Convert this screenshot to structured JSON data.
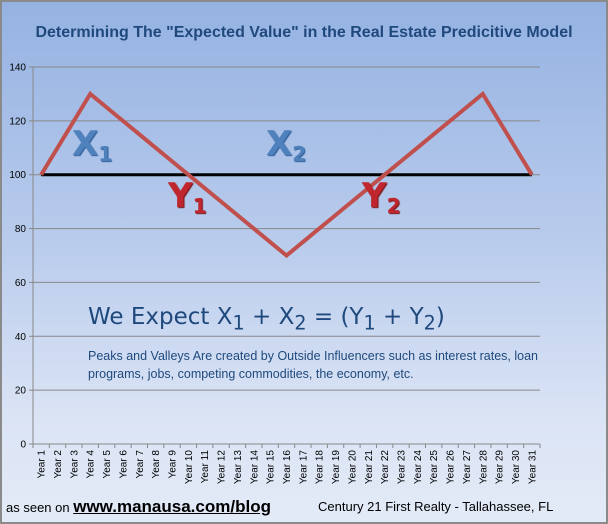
{
  "chart_data": {
    "type": "line",
    "title": "Determining The \"Expected Value\" in the Real Estate Predicitive Model",
    "categories": [
      "Year 1",
      "Year 2",
      "Year 3",
      "Year 4",
      "Year 5",
      "Year 6",
      "Year 7",
      "Year 8",
      "Year 9",
      "Year 10",
      "Year 11",
      "Year 12",
      "Year 13",
      "Year 14",
      "Year 15",
      "Year 16",
      "Year 17",
      "Year 18",
      "Year 19",
      "Year 20",
      "Year 21",
      "Year 22",
      "Year 23",
      "Year 24",
      "Year 25",
      "Year 26",
      "Year 27",
      "Year 28",
      "Year 29",
      "Year 30",
      "Year 31"
    ],
    "series": [
      {
        "values": [
          100,
          110,
          120,
          130,
          125,
          120,
          115,
          110,
          105,
          100,
          95,
          90,
          85,
          80,
          75,
          70,
          75,
          80,
          85,
          90,
          95,
          100,
          105,
          110,
          115,
          120,
          125,
          130,
          120,
          110,
          100
        ],
        "color": "#c0504d"
      },
      {
        "values": [
          100,
          100,
          100,
          100,
          100,
          100,
          100,
          100,
          100,
          100,
          100,
          100,
          100,
          100,
          100,
          100,
          100,
          100,
          100,
          100,
          100,
          100,
          100,
          100,
          100,
          100,
          100,
          100,
          100,
          100,
          100
        ],
        "color": "#000000"
      }
    ],
    "ylim": [
      0,
      140
    ],
    "yticks": [
      0,
      20,
      40,
      60,
      80,
      100,
      120,
      140
    ],
    "grid": true
  },
  "annotations": {
    "x1": {
      "letter": "X",
      "sub": "1"
    },
    "x2": {
      "letter": "X",
      "sub": "2"
    },
    "y1": {
      "letter": "Y",
      "sub": "1"
    },
    "y2": {
      "letter": "Y",
      "sub": "2"
    },
    "formula": {
      "a": "We Expect X",
      "s1": "1",
      "b": " + X",
      "s2": "2",
      "c": " = (Y",
      "s3": "1",
      "d": " + Y",
      "s4": "2",
      "e": ")"
    },
    "note": "Peaks and Valleys Are created by  Outside Influencers such as interest rates, loan programs, jobs, competing commodities, the economy, etc."
  },
  "footer": {
    "seen_on": "as seen on ",
    "url": "www.manausa.com/blog",
    "company": "Century 21 First Realty - Tallahassee, FL"
  }
}
